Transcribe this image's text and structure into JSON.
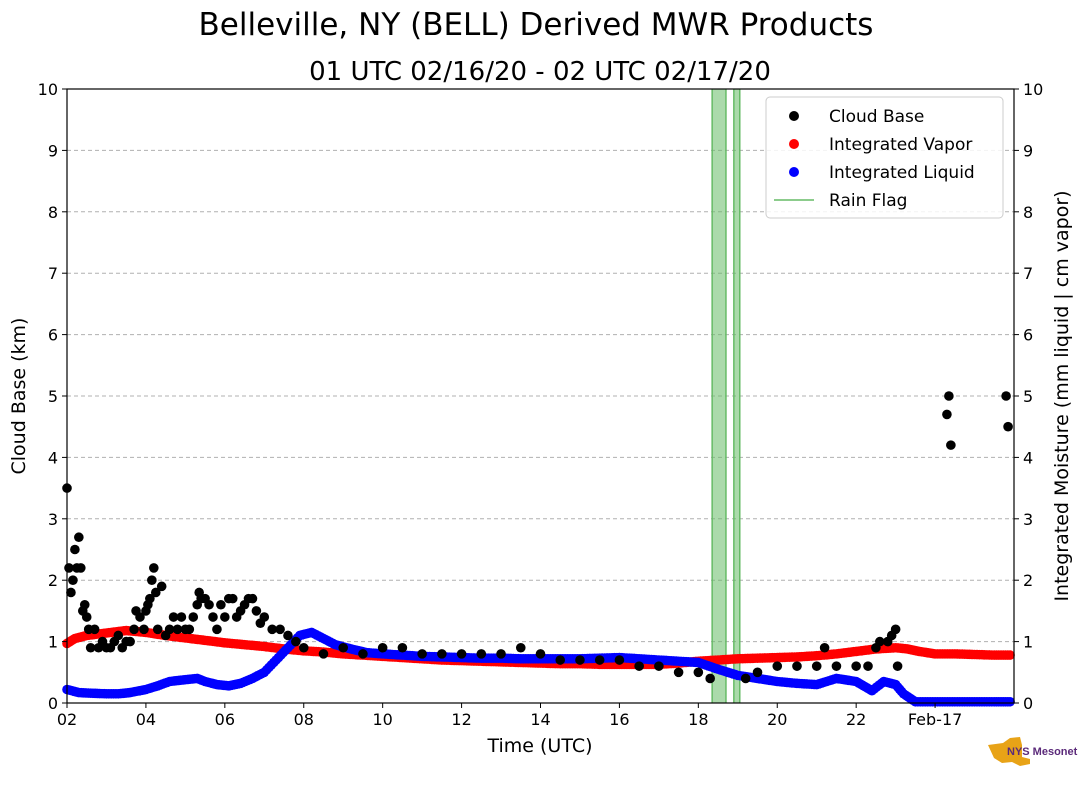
{
  "chart_data": {
    "type": "scatter",
    "title": "Belleville, NY (BELL) Derived MWR Products",
    "subtitle": "01 UTC 02/16/20 - 02 UTC 02/17/20",
    "xlabel": "Time (UTC)",
    "ylabel_left": "Cloud Base (km)",
    "ylabel_right": "Integrated Moisture (mm liquid | cm vapor)",
    "xlim": [
      2,
      26
    ],
    "ylim": [
      0,
      10
    ],
    "yticks": [
      "0",
      "1",
      "2",
      "3",
      "4",
      "5",
      "6",
      "7",
      "8",
      "9",
      "10"
    ],
    "xticks": [
      {
        "x": 2,
        "label": "02"
      },
      {
        "x": 4,
        "label": "04"
      },
      {
        "x": 6,
        "label": "06"
      },
      {
        "x": 8,
        "label": "08"
      },
      {
        "x": 10,
        "label": "10"
      },
      {
        "x": 12,
        "label": "12"
      },
      {
        "x": 14,
        "label": "14"
      },
      {
        "x": 16,
        "label": "16"
      },
      {
        "x": 18,
        "label": "18"
      },
      {
        "x": 20,
        "label": "20"
      },
      {
        "x": 22,
        "label": "22"
      },
      {
        "x": 24,
        "label": "Feb-17"
      }
    ],
    "grid": true,
    "legend_position": "top-right",
    "colors": {
      "cloud_base": "#000000",
      "vapor": "#ff0000",
      "liquid": "#0000ff",
      "rain": "#66bb66"
    },
    "legend": [
      {
        "label": "Cloud Base",
        "color": "#000000",
        "marker": "dot"
      },
      {
        "label": "Integrated Vapor",
        "color": "#ff0000",
        "marker": "dot"
      },
      {
        "label": "Integrated Liquid",
        "color": "#0000ff",
        "marker": "dot"
      },
      {
        "label": "Rain Flag",
        "color": "#66bb66",
        "marker": "line"
      }
    ],
    "rain_flag_spans": [
      [
        18.35,
        18.7
      ],
      [
        18.9,
        19.05
      ]
    ],
    "series": [
      {
        "name": "Cloud Base",
        "color": "#000000",
        "points": [
          [
            2.0,
            3.5
          ],
          [
            2.05,
            2.2
          ],
          [
            2.1,
            1.8
          ],
          [
            2.15,
            2.0
          ],
          [
            2.2,
            2.5
          ],
          [
            2.25,
            2.2
          ],
          [
            2.3,
            2.7
          ],
          [
            2.35,
            2.2
          ],
          [
            2.4,
            1.5
          ],
          [
            2.45,
            1.6
          ],
          [
            2.5,
            1.4
          ],
          [
            2.55,
            1.2
          ],
          [
            2.6,
            0.9
          ],
          [
            2.7,
            1.2
          ],
          [
            2.8,
            0.9
          ],
          [
            2.9,
            1.0
          ],
          [
            3.0,
            0.9
          ],
          [
            3.1,
            0.9
          ],
          [
            3.2,
            1.0
          ],
          [
            3.3,
            1.1
          ],
          [
            3.4,
            0.9
          ],
          [
            3.5,
            1.0
          ],
          [
            3.6,
            1.0
          ],
          [
            3.7,
            1.2
          ],
          [
            3.75,
            1.5
          ],
          [
            3.85,
            1.4
          ],
          [
            3.95,
            1.2
          ],
          [
            4.0,
            1.5
          ],
          [
            4.05,
            1.6
          ],
          [
            4.1,
            1.7
          ],
          [
            4.15,
            2.0
          ],
          [
            4.2,
            2.2
          ],
          [
            4.25,
            1.8
          ],
          [
            4.3,
            1.2
          ],
          [
            4.4,
            1.9
          ],
          [
            4.5,
            1.1
          ],
          [
            4.6,
            1.2
          ],
          [
            4.7,
            1.4
          ],
          [
            4.8,
            1.2
          ],
          [
            4.9,
            1.4
          ],
          [
            5.0,
            1.2
          ],
          [
            5.1,
            1.2
          ],
          [
            5.2,
            1.4
          ],
          [
            5.3,
            1.6
          ],
          [
            5.35,
            1.8
          ],
          [
            5.4,
            1.7
          ],
          [
            5.5,
            1.7
          ],
          [
            5.6,
            1.6
          ],
          [
            5.7,
            1.4
          ],
          [
            5.8,
            1.2
          ],
          [
            5.9,
            1.6
          ],
          [
            6.0,
            1.4
          ],
          [
            6.1,
            1.7
          ],
          [
            6.2,
            1.7
          ],
          [
            6.3,
            1.4
          ],
          [
            6.4,
            1.5
          ],
          [
            6.5,
            1.6
          ],
          [
            6.6,
            1.7
          ],
          [
            6.7,
            1.7
          ],
          [
            6.8,
            1.5
          ],
          [
            6.9,
            1.3
          ],
          [
            7.0,
            1.4
          ],
          [
            7.2,
            1.2
          ],
          [
            7.4,
            1.2
          ],
          [
            7.6,
            1.1
          ],
          [
            7.8,
            1.0
          ],
          [
            8.0,
            0.9
          ],
          [
            8.5,
            0.8
          ],
          [
            9.0,
            0.9
          ],
          [
            9.5,
            0.8
          ],
          [
            10.0,
            0.9
          ],
          [
            10.5,
            0.9
          ],
          [
            11.0,
            0.8
          ],
          [
            11.5,
            0.8
          ],
          [
            12.0,
            0.8
          ],
          [
            12.5,
            0.8
          ],
          [
            13.0,
            0.8
          ],
          [
            13.5,
            0.9
          ],
          [
            14.0,
            0.8
          ],
          [
            14.5,
            0.7
          ],
          [
            15.0,
            0.7
          ],
          [
            15.5,
            0.7
          ],
          [
            16.0,
            0.7
          ],
          [
            16.5,
            0.6
          ],
          [
            17.0,
            0.6
          ],
          [
            17.5,
            0.5
          ],
          [
            18.0,
            0.5
          ],
          [
            18.3,
            0.4
          ],
          [
            19.2,
            0.4
          ],
          [
            19.5,
            0.5
          ],
          [
            20.0,
            0.6
          ],
          [
            20.5,
            0.6
          ],
          [
            21.0,
            0.6
          ],
          [
            21.2,
            0.9
          ],
          [
            21.5,
            0.6
          ],
          [
            22.0,
            0.6
          ],
          [
            22.3,
            0.6
          ],
          [
            22.5,
            0.9
          ],
          [
            22.6,
            1.0
          ],
          [
            22.8,
            1.0
          ],
          [
            22.9,
            1.1
          ],
          [
            23.0,
            1.2
          ],
          [
            23.05,
            0.6
          ],
          [
            24.3,
            4.7
          ],
          [
            24.35,
            5.0
          ],
          [
            24.4,
            4.2
          ],
          [
            25.8,
            5.0
          ],
          [
            25.85,
            4.5
          ]
        ]
      },
      {
        "name": "Integrated Vapor",
        "color": "#ff0000",
        "points": [
          [
            2.0,
            0.97
          ],
          [
            2.2,
            1.05
          ],
          [
            2.5,
            1.1
          ],
          [
            3.0,
            1.14
          ],
          [
            3.5,
            1.18
          ],
          [
            4.0,
            1.15
          ],
          [
            4.5,
            1.1
          ],
          [
            5.0,
            1.06
          ],
          [
            5.5,
            1.02
          ],
          [
            6.0,
            0.98
          ],
          [
            6.5,
            0.95
          ],
          [
            7.0,
            0.92
          ],
          [
            7.5,
            0.88
          ],
          [
            8.0,
            0.85
          ],
          [
            8.5,
            0.83
          ],
          [
            9.0,
            0.8
          ],
          [
            9.5,
            0.78
          ],
          [
            10.0,
            0.76
          ],
          [
            10.5,
            0.74
          ],
          [
            11.0,
            0.72
          ],
          [
            11.5,
            0.7
          ],
          [
            12.0,
            0.69
          ],
          [
            12.5,
            0.68
          ],
          [
            13.0,
            0.67
          ],
          [
            13.5,
            0.66
          ],
          [
            14.0,
            0.65
          ],
          [
            14.5,
            0.64
          ],
          [
            15.0,
            0.64
          ],
          [
            15.5,
            0.63
          ],
          [
            16.0,
            0.63
          ],
          [
            16.5,
            0.63
          ],
          [
            17.0,
            0.63
          ],
          [
            17.5,
            0.65
          ],
          [
            18.0,
            0.68
          ],
          [
            18.5,
            0.7
          ],
          [
            19.0,
            0.72
          ],
          [
            19.5,
            0.73
          ],
          [
            20.0,
            0.74
          ],
          [
            20.5,
            0.75
          ],
          [
            21.0,
            0.77
          ],
          [
            21.5,
            0.8
          ],
          [
            22.0,
            0.84
          ],
          [
            22.5,
            0.88
          ],
          [
            23.0,
            0.9
          ],
          [
            23.3,
            0.88
          ],
          [
            23.6,
            0.84
          ],
          [
            24.0,
            0.8
          ],
          [
            24.5,
            0.8
          ],
          [
            25.0,
            0.79
          ],
          [
            25.5,
            0.78
          ],
          [
            25.9,
            0.78
          ]
        ]
      },
      {
        "name": "Integrated Liquid",
        "color": "#0000ff",
        "points": [
          [
            2.0,
            0.22
          ],
          [
            2.3,
            0.17
          ],
          [
            2.6,
            0.16
          ],
          [
            3.0,
            0.15
          ],
          [
            3.3,
            0.15
          ],
          [
            3.6,
            0.17
          ],
          [
            4.0,
            0.22
          ],
          [
            4.3,
            0.28
          ],
          [
            4.6,
            0.35
          ],
          [
            5.0,
            0.38
          ],
          [
            5.3,
            0.4
          ],
          [
            5.5,
            0.35
          ],
          [
            5.8,
            0.3
          ],
          [
            6.1,
            0.28
          ],
          [
            6.4,
            0.32
          ],
          [
            6.7,
            0.4
          ],
          [
            7.0,
            0.5
          ],
          [
            7.3,
            0.7
          ],
          [
            7.6,
            0.9
          ],
          [
            7.9,
            1.1
          ],
          [
            8.2,
            1.15
          ],
          [
            8.5,
            1.05
          ],
          [
            8.8,
            0.95
          ],
          [
            9.2,
            0.88
          ],
          [
            9.6,
            0.82
          ],
          [
            10.0,
            0.8
          ],
          [
            10.5,
            0.78
          ],
          [
            11.0,
            0.76
          ],
          [
            11.5,
            0.75
          ],
          [
            12.0,
            0.74
          ],
          [
            12.5,
            0.73
          ],
          [
            13.0,
            0.73
          ],
          [
            13.5,
            0.72
          ],
          [
            14.0,
            0.72
          ],
          [
            14.5,
            0.72
          ],
          [
            15.0,
            0.72
          ],
          [
            15.5,
            0.73
          ],
          [
            16.0,
            0.74
          ],
          [
            16.5,
            0.72
          ],
          [
            17.0,
            0.7
          ],
          [
            17.5,
            0.68
          ],
          [
            18.0,
            0.66
          ],
          [
            18.5,
            0.55
          ],
          [
            19.0,
            0.45
          ],
          [
            19.5,
            0.4
          ],
          [
            20.0,
            0.35
          ],
          [
            20.5,
            0.32
          ],
          [
            21.0,
            0.3
          ],
          [
            21.5,
            0.4
          ],
          [
            22.0,
            0.35
          ],
          [
            22.4,
            0.2
          ],
          [
            22.7,
            0.35
          ],
          [
            23.0,
            0.3
          ],
          [
            23.2,
            0.15
          ],
          [
            23.5,
            0.02
          ],
          [
            24.0,
            0.02
          ],
          [
            24.5,
            0.02
          ],
          [
            25.0,
            0.02
          ],
          [
            25.5,
            0.02
          ],
          [
            25.9,
            0.02
          ]
        ]
      }
    ]
  },
  "logo": {
    "text": "NYS Mesonet"
  }
}
